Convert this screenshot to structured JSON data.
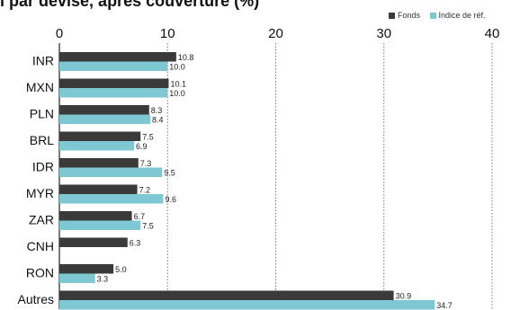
{
  "title": "l par devise, après couverture (%)",
  "legend": [
    {
      "name": "Fonds",
      "color": "#3a3a3a"
    },
    {
      "name": "Indice de réf.",
      "color": "#7ec8d3"
    }
  ],
  "chart_data": {
    "type": "bar",
    "orientation": "horizontal",
    "categories": [
      "INR",
      "MXN",
      "PLN",
      "BRL",
      "IDR",
      "MYR",
      "ZAR",
      "CNH",
      "RON",
      "Autres"
    ],
    "series": [
      {
        "name": "Fonds",
        "color": "#3a3a3a",
        "values": [
          10.8,
          10.1,
          8.3,
          7.5,
          7.3,
          7.2,
          6.7,
          6.3,
          5.0,
          30.9
        ],
        "labels": [
          "10.8",
          "10.1",
          "8.3",
          "7.5",
          "7.3",
          "7.2",
          "6.7",
          "6.3",
          "5.0",
          "30.9"
        ]
      },
      {
        "name": "Indice de réf.",
        "color": "#7ec8d3",
        "values": [
          10.0,
          10.0,
          8.4,
          6.9,
          9.5,
          9.6,
          7.5,
          null,
          3.3,
          34.7
        ],
        "labels": [
          "10.0",
          "10.0",
          "8.4",
          "6.9",
          "9.5",
          "9.6",
          "7.5",
          "",
          "3.3",
          "34.7"
        ]
      }
    ],
    "xlim": [
      0,
      40
    ],
    "xticks": [
      0,
      10,
      20,
      30,
      40
    ],
    "xtick_labels": [
      "0",
      "10",
      "20",
      "30",
      "40"
    ],
    "axis_position": "top",
    "grid": "dotted vertical at ticks",
    "legend_position": "top-right"
  }
}
